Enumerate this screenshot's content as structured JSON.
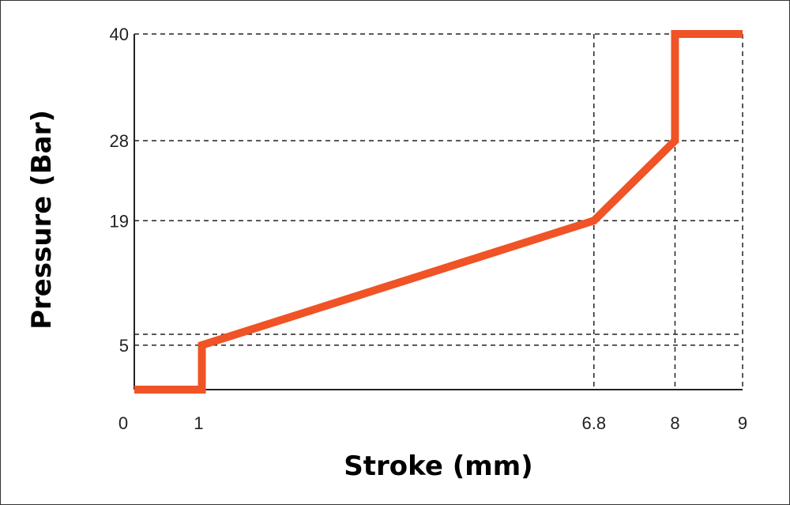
{
  "chart_data": {
    "type": "line",
    "title": "",
    "xlabel": "Stroke (mm)",
    "ylabel": "Pressure (Bar)",
    "xlim": [
      0,
      9
    ],
    "ylim": [
      0,
      40
    ],
    "x_ticks": [
      0,
      1,
      6.8,
      8,
      9
    ],
    "x_tick_labels": [
      "0",
      "1",
      "6.8",
      "8",
      "9"
    ],
    "y_ticks": [
      5,
      19,
      28,
      40
    ],
    "y_tick_labels": [
      "5",
      "19",
      "28",
      "40"
    ],
    "grid": "dashed reference lines",
    "legend": "none",
    "series": [
      {
        "color": "#ef5326",
        "points": [
          {
            "x": 0,
            "y": 0
          },
          {
            "x": 1,
            "y": 0
          },
          {
            "x": 1,
            "y": 5
          },
          {
            "x": 6.8,
            "y": 19
          },
          {
            "x": 8,
            "y": 28
          },
          {
            "x": 8,
            "y": 40
          },
          {
            "x": 9,
            "y": 40
          }
        ]
      }
    ]
  }
}
